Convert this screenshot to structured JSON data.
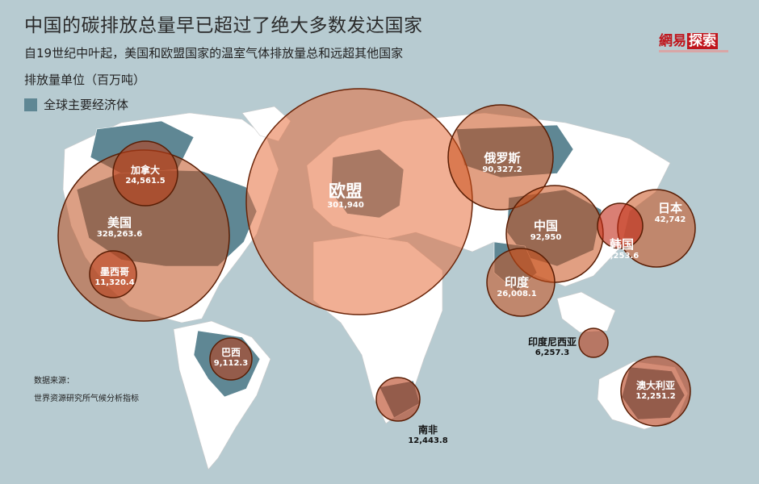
{
  "title": "中国的碳排放总量早已超过了绝大多数发达国家",
  "subtitle": "自19世纪中叶起，美国和欧盟国家的温室气体排放量总和远超其他国家",
  "unit": "排放量单位（百万吨）",
  "legend": "全球主要经济体",
  "brand": {
    "part1": "網易",
    "part2": "探索"
  },
  "source": {
    "label": "数据来源：",
    "text": "世界资源研究所气候分析指标"
  },
  "countries": {
    "canada": {
      "name": "加拿大",
      "value": "24,561.5"
    },
    "usa": {
      "name": "美国",
      "value": "328,263.6"
    },
    "mexico": {
      "name": "墨西哥",
      "value": "11,320.4"
    },
    "brazil": {
      "name": "巴西",
      "value": "9,112.3"
    },
    "eu": {
      "name": "欧盟",
      "value": "301,940"
    },
    "russia": {
      "name": "俄罗斯",
      "value": "90,327.2"
    },
    "china": {
      "name": "中国",
      "value": "92,950"
    },
    "japan": {
      "name": "日本",
      "value": "42,742"
    },
    "korea": {
      "name": "韩国",
      "value": "9,253.6"
    },
    "india": {
      "name": "印度",
      "value": "26,008.1"
    },
    "indonesia": {
      "name": "印度尼西亚",
      "value": "6,257.3"
    },
    "australia": {
      "name": "澳大利亚",
      "value": "12,251.2"
    },
    "south_africa": {
      "name": "南非",
      "value": "12,443.8"
    }
  },
  "colors": {
    "ocean": "#b7cbd1",
    "land": "#ffffff",
    "major_economy": "#5f8794",
    "bubble": "#c8511c",
    "brand_red": "#c0161d"
  }
}
